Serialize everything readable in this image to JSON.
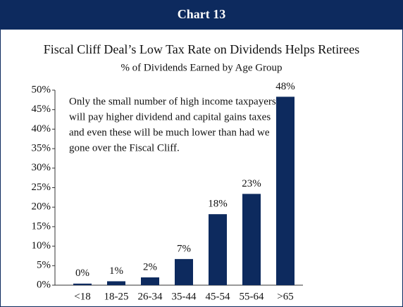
{
  "chart_data": {
    "type": "bar",
    "header": "Chart 13",
    "title": "Fiscal Cliff Deal’s Low Tax Rate on Dividends Helps Retirees",
    "subtitle": "% of Dividends Earned by Age Group",
    "annotation": [
      "Only the small number of high income taxpayers",
      "will pay higher dividend and capital gains taxes",
      "and even these will be much lower than had we",
      "gone over the Fiscal Cliff."
    ],
    "categories": [
      "<18",
      "18-25",
      "26-34",
      "35-44",
      "45-54",
      "55-64",
      ">65"
    ],
    "values": [
      0.4,
      1,
      2,
      6.7,
      18.2,
      23.4,
      48.3
    ],
    "value_labels": [
      "0%",
      "1%",
      "2%",
      "7%",
      "18%",
      "23%",
      "48%"
    ],
    "color": "#0d2a5e",
    "ylim": [
      0,
      50
    ],
    "yticks": [
      {
        "value": 0,
        "label": "0%"
      },
      {
        "value": 5,
        "label": "5%"
      },
      {
        "value": 10,
        "label": "10%"
      },
      {
        "value": 15,
        "label": "15%"
      },
      {
        "value": 20,
        "label": "20%"
      },
      {
        "value": 25,
        "label": "25%"
      },
      {
        "value": 30,
        "label": "30%"
      },
      {
        "value": 35,
        "label": "35%"
      },
      {
        "value": 40,
        "label": "40%"
      },
      {
        "value": 45,
        "label": "45%"
      },
      {
        "value": 50,
        "label": "50%"
      }
    ],
    "grid": false
  }
}
